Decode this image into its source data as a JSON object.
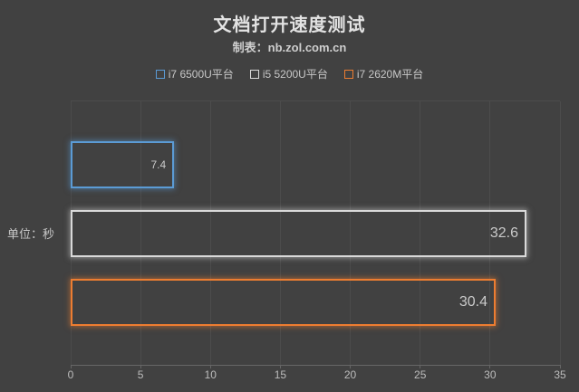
{
  "page": {
    "background": "#414141"
  },
  "header": {
    "title": "文档打开速度测试",
    "subtitle": "制表：nb.zol.com.cn"
  },
  "legend": {
    "items": [
      {
        "label": "i7 6500U平台",
        "color": "#5B9BD5"
      },
      {
        "label": "i5 5200U平台",
        "color": "#D9D9D9"
      },
      {
        "label": "i7 2620M平台",
        "color": "#ED7D31"
      }
    ]
  },
  "axis": {
    "unit_label": "单位：秒",
    "tick_labels": [
      "0",
      "5",
      "10",
      "15",
      "20",
      "25",
      "30",
      "35"
    ]
  },
  "chart_data": {
    "type": "bar",
    "orientation": "horizontal",
    "title": "文档打开速度测试",
    "subtitle": "制表：nb.zol.com.cn",
    "ylabel": "单位：秒",
    "xlabel": "",
    "xlim": [
      0,
      35
    ],
    "xticks": [
      0,
      5,
      10,
      15,
      20,
      25,
      30,
      35
    ],
    "grid": true,
    "legend_position": "top-center",
    "series": [
      {
        "name": "i7 6500U平台",
        "value": 7.4,
        "data_label": "7.4",
        "color": "#5B9BD5"
      },
      {
        "name": "i5 5200U平台",
        "value": 32.6,
        "data_label": "32.6",
        "color": "#D9D9D9"
      },
      {
        "name": "i7 2620M平台",
        "value": 30.4,
        "data_label": "30.4",
        "color": "#ED7D31"
      }
    ]
  }
}
